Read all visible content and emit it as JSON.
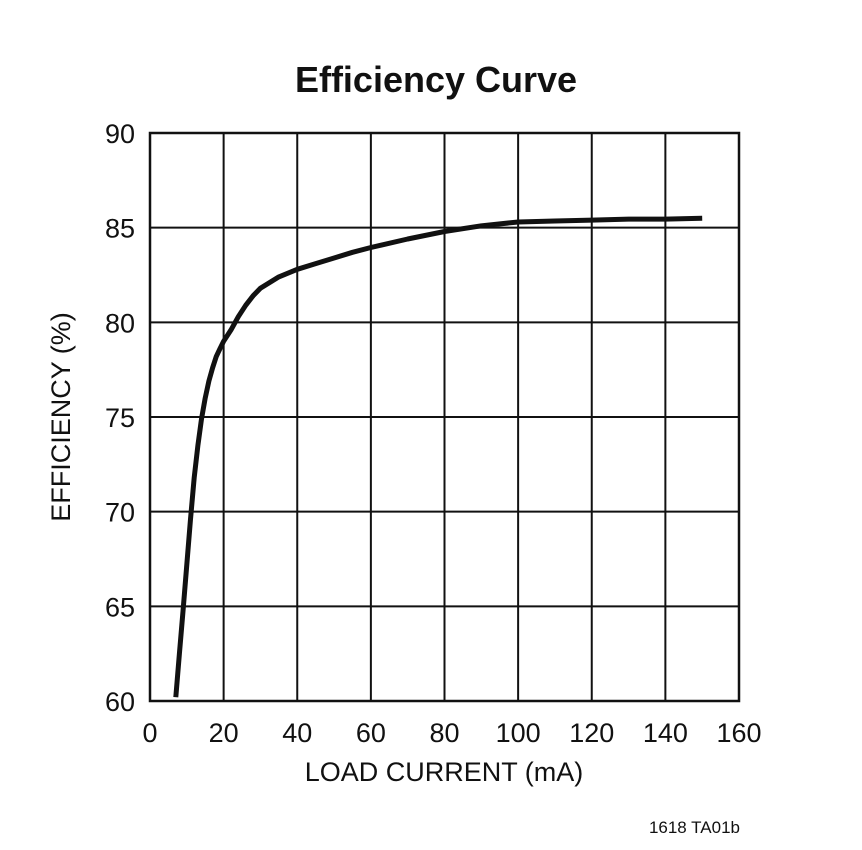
{
  "chart_data": {
    "type": "line",
    "title": "Efficiency Curve",
    "xlabel": "LOAD CURRENT (mA)",
    "ylabel": "EFFICIENCY (%)",
    "xlim": [
      0,
      160
    ],
    "ylim": [
      60,
      90
    ],
    "xticks": [
      0,
      20,
      40,
      60,
      80,
      100,
      120,
      140,
      160
    ],
    "yticks": [
      60,
      65,
      70,
      75,
      80,
      85,
      90
    ],
    "grid": true,
    "legend": "none",
    "series": [
      {
        "color": "#111111",
        "x": [
          7,
          8,
          9,
          10,
          11,
          12,
          13,
          14,
          15,
          16,
          17,
          18,
          19,
          20,
          22,
          24,
          26,
          28,
          30,
          35,
          40,
          45,
          50,
          55,
          60,
          70,
          80,
          90,
          100,
          110,
          120,
          130,
          140,
          150
        ],
        "y": [
          60.2,
          62.5,
          64.8,
          67.2,
          69.6,
          71.8,
          73.5,
          74.9,
          76.0,
          76.9,
          77.6,
          78.2,
          78.6,
          79.0,
          79.6,
          80.3,
          80.9,
          81.4,
          81.8,
          82.4,
          82.8,
          83.1,
          83.4,
          83.7,
          83.95,
          84.4,
          84.8,
          85.1,
          85.3,
          85.35,
          85.4,
          85.45,
          85.45,
          85.5
        ]
      }
    ]
  },
  "footnote": "1618 TA01b"
}
